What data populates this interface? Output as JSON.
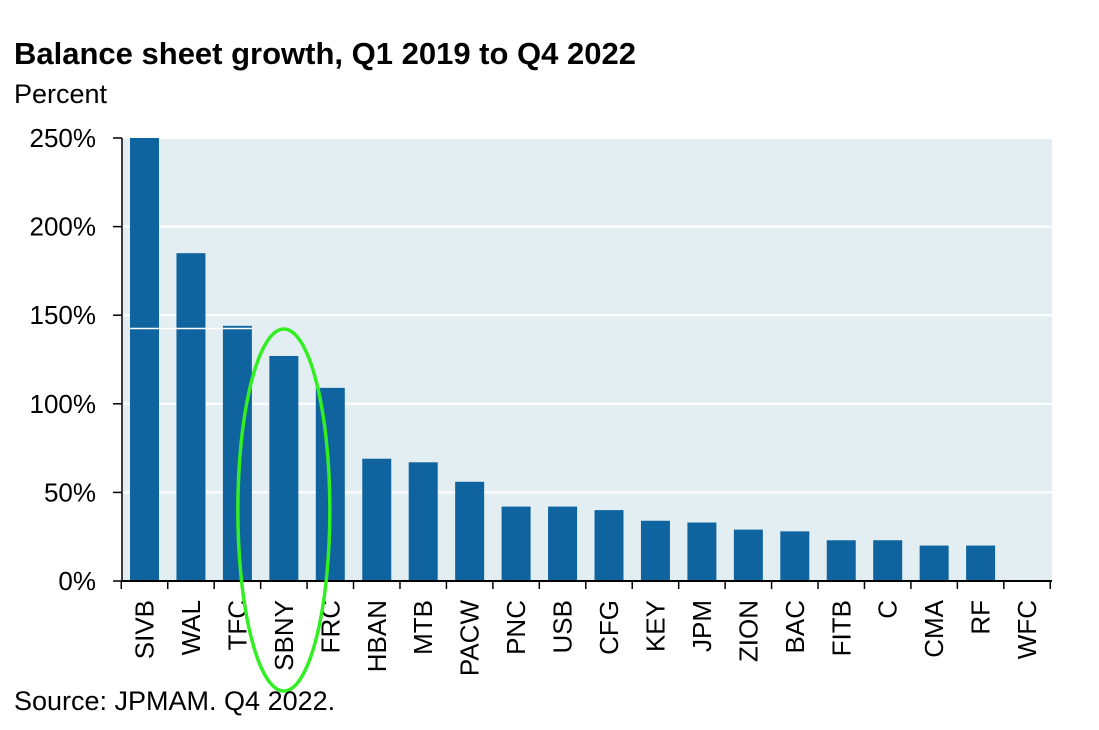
{
  "chart_data": {
    "type": "bar",
    "title": "Balance sheet growth, Q1 2019 to Q4 2022",
    "subtitle": "Percent",
    "source": "Source: JPMAM. Q4 2022.",
    "categories": [
      "SIVB",
      "WAL",
      "TFC",
      "SBNY",
      "FRC",
      "HBAN",
      "MTB",
      "PACW",
      "PNC",
      "USB",
      "CFG",
      "KEY",
      "JPM",
      "ZION",
      "BAC",
      "FITB",
      "C",
      "CMA",
      "RF",
      "WFC"
    ],
    "values": [
      250,
      185,
      144,
      127,
      109,
      69,
      67,
      56,
      42,
      42,
      40,
      34,
      33,
      29,
      28,
      23,
      23,
      20,
      20,
      0
    ],
    "y_ticks": [
      "0%",
      "50%",
      "100%",
      "150%",
      "200%",
      "250%"
    ],
    "y_tick_values": [
      0,
      50,
      100,
      150,
      200,
      250
    ],
    "ylim": [
      0,
      250
    ],
    "grid": true,
    "colors": {
      "bar": "#0f64a0",
      "plot_background": "#e3eef3",
      "gridline": "#ffffff",
      "highlight_annotation": "#33ee22"
    },
    "annotations": [
      {
        "type": "ellipse",
        "target_category": "SBNY",
        "color": "#33ee22"
      }
    ]
  }
}
